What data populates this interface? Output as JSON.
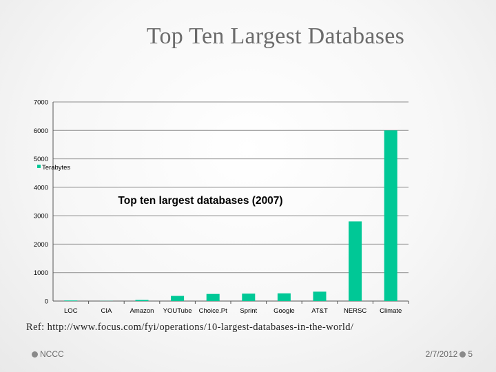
{
  "slide": {
    "title": "Top Ten Largest Databases",
    "reference": "Ref: http://www.focus.com/fyi/operations/10-largest-databases-in-the-world/",
    "footer_left": "NCCC",
    "footer_date": "2/7/2012",
    "page_number": "5"
  },
  "colors": {
    "bar": "#00C896",
    "grid": "#8c8c8c",
    "footer_dot": "#8a8a8a"
  },
  "chart_data": {
    "type": "bar",
    "title": "Top ten largest databases (2007)",
    "categories": [
      "LOC",
      "CIA",
      "Amazon",
      "YOUTube",
      "Choice.Pt",
      "Sprint",
      "Google",
      "AT&T",
      "NERSC",
      "Climate"
    ],
    "series": [
      {
        "name": "Terabytes",
        "values": [
          20,
          5,
          40,
          180,
          250,
          260,
          270,
          330,
          2800,
          6000
        ]
      }
    ],
    "y_ticks": [
      "0",
      "1000",
      "2000",
      "3000",
      "4000",
      "5000",
      "6000",
      "7000"
    ],
    "ylim": [
      0,
      7000
    ],
    "grid": true,
    "legend_position": "left"
  }
}
